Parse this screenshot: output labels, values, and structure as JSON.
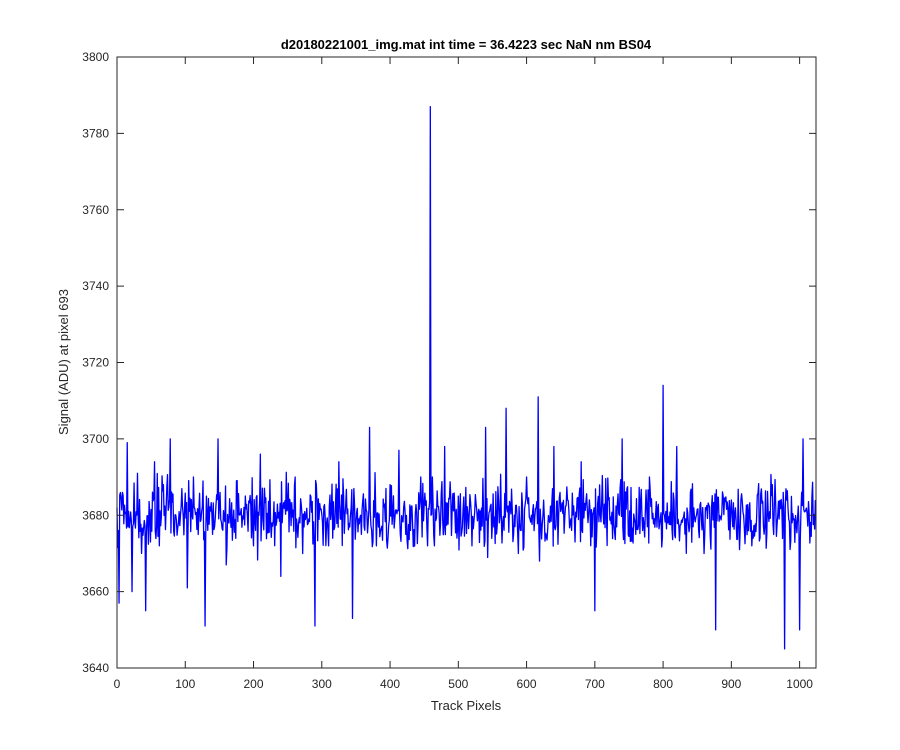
{
  "chart_data": {
    "type": "line",
    "title": "d20180221001_img.mat int time = 36.4223 sec  NaN nm BS04",
    "xlabel": "Track Pixels",
    "ylabel": "Signal (ADU) at pixel 693",
    "xlim": [
      0,
      1024
    ],
    "ylim": [
      3640,
      3800
    ],
    "xticks": [
      0,
      100,
      200,
      300,
      400,
      500,
      600,
      700,
      800,
      900,
      1000
    ],
    "yticks": [
      3640,
      3660,
      3680,
      3700,
      3720,
      3740,
      3760,
      3780,
      3800
    ],
    "grid": false,
    "box": true,
    "series": [
      {
        "color": "#0000ff",
        "n_points": 1024,
        "baseline": 3680,
        "noise_amplitude": 8,
        "x": [
          0,
          3,
          8,
          15,
          22,
          30,
          36,
          42,
          55,
          62,
          68,
          78,
          90,
          103,
          112,
          129,
          131,
          148,
          160,
          175,
          200,
          210,
          225,
          240,
          261,
          272,
          290,
          292,
          310,
          325,
          345,
          357,
          370,
          380,
          400,
          413,
          430,
          445,
          455,
          459,
          460,
          462,
          465,
          480,
          500,
          520,
          540,
          560,
          570,
          588,
          600,
          617,
          619,
          640,
          660,
          671,
          680,
          700,
          720,
          740,
          760,
          780,
          800,
          802,
          820,
          840,
          860,
          877,
          900,
          930,
          960,
          978,
          981,
          1000,
          1005,
          1023
        ],
        "y": [
          3682,
          3657,
          3686,
          3699,
          3660,
          3691,
          3670,
          3655,
          3694,
          3672,
          3688,
          3700,
          3678,
          3661,
          3690,
          3651,
          3685,
          3700,
          3667,
          3689,
          3672,
          3696,
          3678,
          3664,
          3690,
          3670,
          3651,
          3688,
          3672,
          3694,
          3653,
          3680,
          3703,
          3672,
          3688,
          3697,
          3676,
          3690,
          3672,
          3787,
          3680,
          3690,
          3672,
          3698,
          3685,
          3672,
          3703,
          3678,
          3708,
          3670,
          3690,
          3711,
          3668,
          3698,
          3684,
          3673,
          3694,
          3655,
          3684,
          3700,
          3675,
          3690,
          3714,
          3680,
          3698,
          3686,
          3670,
          3650,
          3684,
          3672,
          3688,
          3645,
          3684,
          3650,
          3700,
          3684
        ]
      }
    ]
  }
}
